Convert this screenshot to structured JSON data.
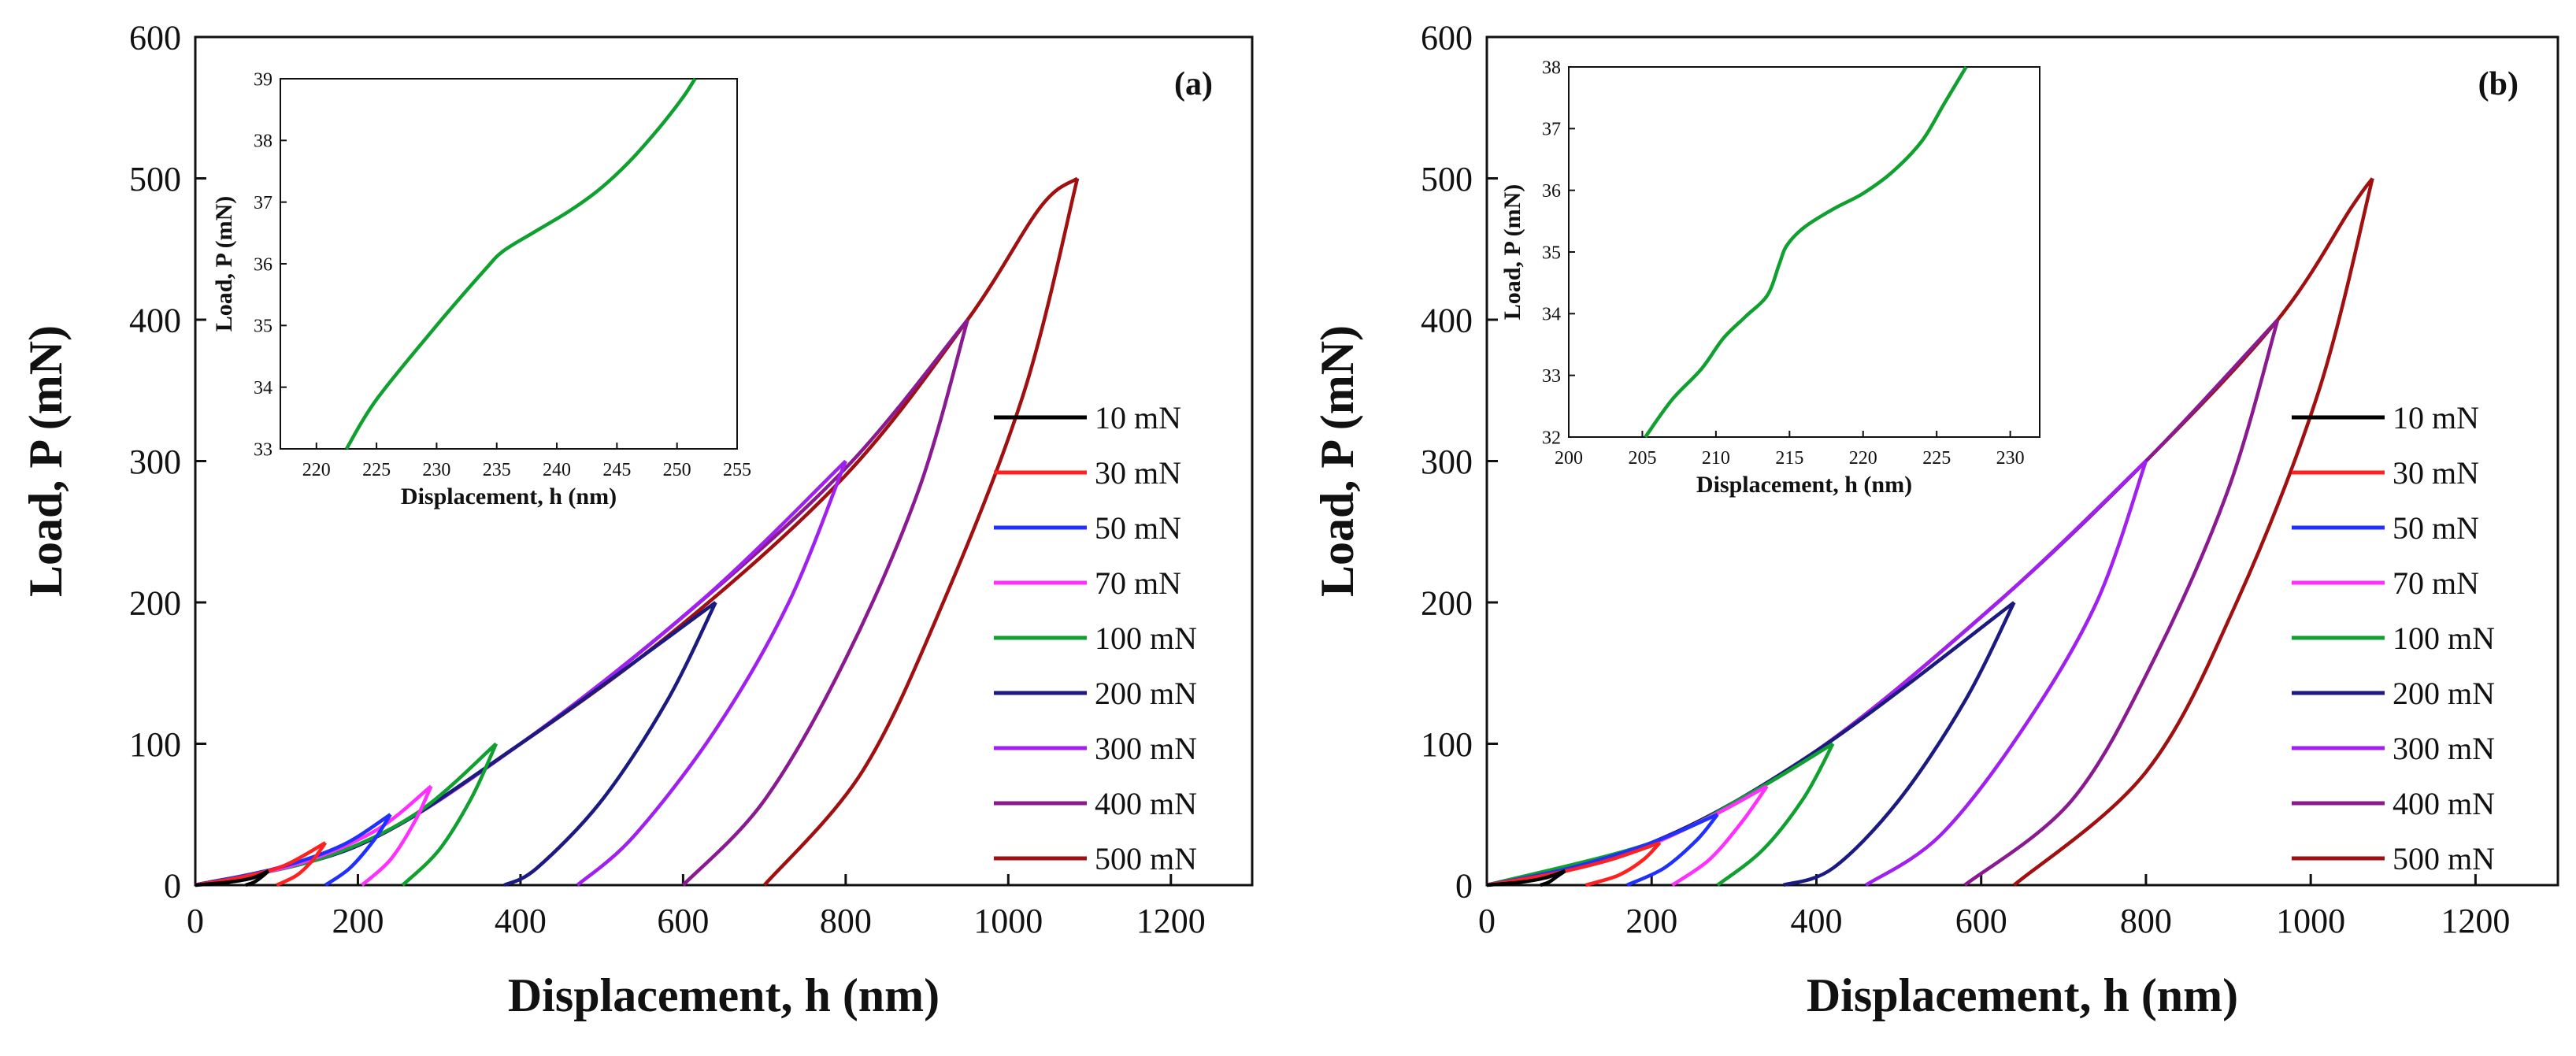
{
  "figure": {
    "panels": [
      "(a)",
      "(b)"
    ]
  },
  "chart_data": [
    {
      "id": "a",
      "type": "line",
      "label": "(a)",
      "xlabel": "Displacement, h (nm)",
      "ylabel": "Load, P (mN)",
      "xlim": [
        0,
        1300
      ],
      "ylim": [
        0,
        600
      ],
      "xticks": [
        0,
        200,
        400,
        600,
        800,
        1000,
        1200
      ],
      "yticks": [
        0,
        100,
        200,
        300,
        400,
        500,
        600
      ],
      "legend_position": "right",
      "series": [
        {
          "name": "10 mN",
          "color": "#000000",
          "loading": [
            [
              0,
              0
            ],
            [
              40,
              2
            ],
            [
              70,
              5
            ],
            [
              90,
              10
            ]
          ],
          "unloading": [
            [
              90,
              10
            ],
            [
              82,
              6
            ],
            [
              72,
              2
            ],
            [
              62,
              0
            ]
          ]
        },
        {
          "name": "30 mN",
          "color": "#ff2020",
          "loading": [
            [
              0,
              0
            ],
            [
              60,
              6
            ],
            [
              110,
              14
            ],
            [
              160,
              30
            ]
          ],
          "unloading": [
            [
              160,
              30
            ],
            [
              145,
              18
            ],
            [
              125,
              7
            ],
            [
              100,
              0
            ]
          ]
        },
        {
          "name": "50 mN",
          "color": "#2030ff",
          "loading": [
            [
              0,
              0
            ],
            [
              100,
              12
            ],
            [
              180,
              28
            ],
            [
              240,
              50
            ]
          ],
          "unloading": [
            [
              240,
              50
            ],
            [
              220,
              32
            ],
            [
              190,
              12
            ],
            [
              160,
              0
            ]
          ]
        },
        {
          "name": "70 mN",
          "color": "#ff30ff",
          "loading": [
            [
              0,
              0
            ],
            [
              120,
              14
            ],
            [
              220,
              38
            ],
            [
              290,
              70
            ]
          ],
          "unloading": [
            [
              290,
              70
            ],
            [
              270,
              45
            ],
            [
              240,
              18
            ],
            [
              205,
              0
            ]
          ]
        },
        {
          "name": "100 mN",
          "color": "#10a030",
          "loading": [
            [
              0,
              0
            ],
            [
              150,
              18
            ],
            [
              270,
              50
            ],
            [
              370,
              100
            ]
          ],
          "unloading": [
            [
              370,
              100
            ],
            [
              340,
              62
            ],
            [
              300,
              25
            ],
            [
              255,
              0
            ]
          ]
        },
        {
          "name": "200 mN",
          "color": "#1a1a80",
          "loading": [
            [
              0,
              0
            ],
            [
              200,
              28
            ],
            [
              400,
              100
            ],
            [
              640,
              200
            ]
          ],
          "unloading": [
            [
              640,
              200
            ],
            [
              580,
              130
            ],
            [
              500,
              60
            ],
            [
              420,
              12
            ],
            [
              380,
              0
            ]
          ]
        },
        {
          "name": "300 mN",
          "color": "#a020f0",
          "loading": [
            [
              0,
              0
            ],
            [
              200,
              28
            ],
            [
              400,
              100
            ],
            [
              620,
              200
            ],
            [
              800,
              300
            ]
          ],
          "unloading": [
            [
              800,
              300
            ],
            [
              730,
              200
            ],
            [
              640,
              110
            ],
            [
              540,
              35
            ],
            [
              470,
              0
            ]
          ]
        },
        {
          "name": "400 mN",
          "color": "#8a1a90",
          "loading": [
            [
              0,
              0
            ],
            [
              200,
              28
            ],
            [
              400,
              100
            ],
            [
              600,
              190
            ],
            [
              800,
              295
            ],
            [
              950,
              400
            ]
          ],
          "unloading": [
            [
              950,
              400
            ],
            [
              890,
              280
            ],
            [
              800,
              160
            ],
            [
              700,
              60
            ],
            [
              600,
              0
            ]
          ]
        },
        {
          "name": "500 mN",
          "color": "#a01010",
          "loading": [
            [
              0,
              0
            ],
            [
              200,
              28
            ],
            [
              400,
              100
            ],
            [
              600,
              185
            ],
            [
              800,
              290
            ],
            [
              950,
              400
            ],
            [
              1040,
              480
            ],
            [
              1085,
              500
            ]
          ],
          "unloading": [
            [
              1085,
              500
            ],
            [
              1020,
              350
            ],
            [
              920,
              200
            ],
            [
              820,
              80
            ],
            [
              700,
              0
            ]
          ]
        }
      ],
      "inset": {
        "xlabel": "Displacement, h (nm)",
        "ylabel": "Load, P (mN)",
        "xlim": [
          217,
          255
        ],
        "ylim": [
          33,
          39
        ],
        "xticks": [
          220,
          225,
          230,
          235,
          240,
          245,
          250,
          255
        ],
        "yticks": [
          33,
          34,
          35,
          36,
          37,
          38,
          39
        ],
        "color": "#10a030",
        "points": [
          [
            222.5,
            33
          ],
          [
            225,
            33.8
          ],
          [
            230,
            35
          ],
          [
            234,
            35.9
          ],
          [
            235.5,
            36.2
          ],
          [
            238,
            36.5
          ],
          [
            241,
            36.85
          ],
          [
            243.5,
            37.2
          ],
          [
            246,
            37.65
          ],
          [
            248.5,
            38.2
          ],
          [
            250.5,
            38.7
          ],
          [
            251.5,
            39
          ]
        ]
      }
    },
    {
      "id": "b",
      "type": "line",
      "label": "(b)",
      "xlabel": "Displacement, h (nm)",
      "ylabel": "Load, P (mN)",
      "xlim": [
        0,
        1300
      ],
      "ylim": [
        0,
        600
      ],
      "xticks": [
        0,
        200,
        400,
        600,
        800,
        1000,
        1200
      ],
      "yticks": [
        0,
        100,
        200,
        300,
        400,
        500,
        600
      ],
      "legend_position": "right",
      "series": [
        {
          "name": "10 mN",
          "color": "#000000",
          "loading": [
            [
              0,
              0
            ],
            [
              40,
              2
            ],
            [
              70,
              5
            ],
            [
              95,
              10
            ]
          ],
          "unloading": [
            [
              95,
              10
            ],
            [
              85,
              6
            ],
            [
              75,
              2
            ],
            [
              65,
              0
            ]
          ]
        },
        {
          "name": "30 mN",
          "color": "#ff2020",
          "loading": [
            [
              0,
              0
            ],
            [
              80,
              8
            ],
            [
              150,
              18
            ],
            [
              210,
              30
            ]
          ],
          "unloading": [
            [
              210,
              30
            ],
            [
              190,
              18
            ],
            [
              160,
              7
            ],
            [
              120,
              0
            ]
          ]
        },
        {
          "name": "50 mN",
          "color": "#2030ff",
          "loading": [
            [
              0,
              0
            ],
            [
              100,
              12
            ],
            [
              200,
              30
            ],
            [
              280,
              50
            ]
          ],
          "unloading": [
            [
              280,
              50
            ],
            [
              255,
              32
            ],
            [
              215,
              12
            ],
            [
              170,
              0
            ]
          ]
        },
        {
          "name": "70 mN",
          "color": "#ff30ff",
          "loading": [
            [
              0,
              0
            ],
            [
              150,
              18
            ],
            [
              260,
              45
            ],
            [
              340,
              70
            ]
          ],
          "unloading": [
            [
              340,
              70
            ],
            [
              310,
              45
            ],
            [
              270,
              18
            ],
            [
              225,
              0
            ]
          ]
        },
        {
          "name": "100 mN",
          "color": "#10a030",
          "loading": [
            [
              0,
              0
            ],
            [
              200,
              30
            ],
            [
              320,
              65
            ],
            [
              420,
              100
            ]
          ],
          "unloading": [
            [
              420,
              100
            ],
            [
              385,
              62
            ],
            [
              335,
              25
            ],
            [
              280,
              0
            ]
          ]
        },
        {
          "name": "200 mN",
          "color": "#1a1a80",
          "loading": [
            [
              0,
              0
            ],
            [
              200,
              30
            ],
            [
              400,
              95
            ],
            [
              640,
              200
            ]
          ],
          "unloading": [
            [
              640,
              200
            ],
            [
              580,
              130
            ],
            [
              500,
              60
            ],
            [
              420,
              12
            ],
            [
              360,
              0
            ]
          ]
        },
        {
          "name": "300 mN",
          "color": "#a020f0",
          "loading": [
            [
              0,
              0
            ],
            [
              200,
              30
            ],
            [
              400,
              95
            ],
            [
              620,
              200
            ],
            [
              800,
              300
            ]
          ],
          "unloading": [
            [
              800,
              300
            ],
            [
              740,
              200
            ],
            [
              650,
              110
            ],
            [
              550,
              35
            ],
            [
              460,
              0
            ]
          ]
        },
        {
          "name": "400 mN",
          "color": "#8a1a90",
          "loading": [
            [
              0,
              0
            ],
            [
              200,
              30
            ],
            [
              400,
              95
            ],
            [
              620,
              200
            ],
            [
              800,
              300
            ],
            [
              960,
              400
            ]
          ],
          "unloading": [
            [
              960,
              400
            ],
            [
              900,
              280
            ],
            [
              810,
              160
            ],
            [
              710,
              60
            ],
            [
              580,
              0
            ]
          ]
        },
        {
          "name": "500 mN",
          "color": "#a01010",
          "loading": [
            [
              0,
              0
            ],
            [
              200,
              30
            ],
            [
              400,
              95
            ],
            [
              620,
              200
            ],
            [
              800,
              300
            ],
            [
              960,
              400
            ],
            [
              1050,
              480
            ],
            [
              1075,
              500
            ]
          ],
          "unloading": [
            [
              1075,
              500
            ],
            [
              1010,
              350
            ],
            [
              910,
              200
            ],
            [
              800,
              80
            ],
            [
              640,
              0
            ]
          ]
        }
      ],
      "inset": {
        "xlabel": "Displacement, h (nm)",
        "ylabel": "Load, P (mN)",
        "xlim": [
          200,
          232
        ],
        "ylim": [
          32,
          38
        ],
        "xticks": [
          200,
          205,
          210,
          215,
          220,
          225,
          230
        ],
        "yticks": [
          32,
          33,
          34,
          35,
          36,
          37,
          38
        ],
        "color": "#10a030",
        "points": [
          [
            205.2,
            32
          ],
          [
            207,
            32.6
          ],
          [
            209,
            33.1
          ],
          [
            210.5,
            33.6
          ],
          [
            212,
            33.95
          ],
          [
            213.5,
            34.3
          ],
          [
            214.3,
            34.8
          ],
          [
            214.8,
            35.1
          ],
          [
            216,
            35.4
          ],
          [
            218,
            35.7
          ],
          [
            220,
            35.95
          ],
          [
            222,
            36.3
          ],
          [
            224,
            36.8
          ],
          [
            225.5,
            37.4
          ],
          [
            227,
            38
          ]
        ]
      }
    }
  ]
}
